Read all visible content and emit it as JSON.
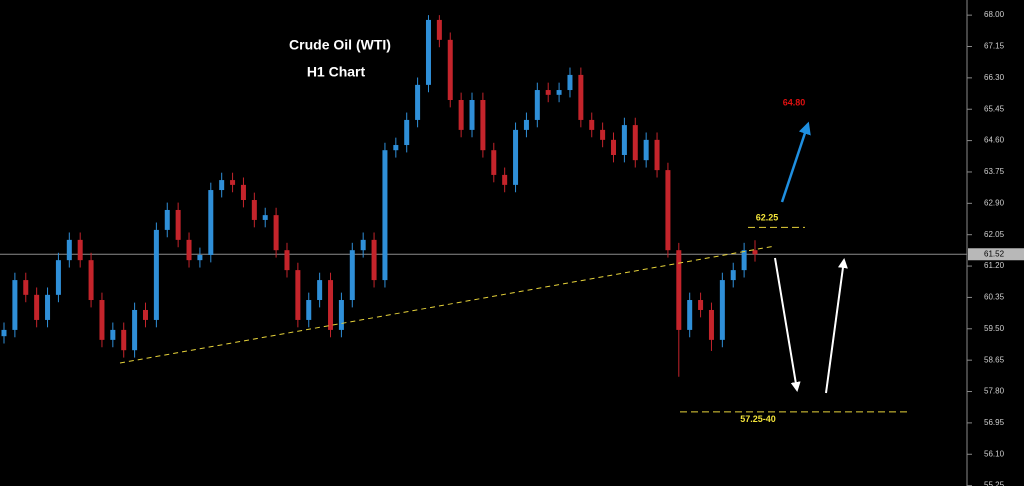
{
  "chart_data": {
    "type": "candlestick",
    "title": "Crude Oil (WTI)",
    "subtitle": "H1 Chart",
    "ylim": [
      55.24,
      68.41
    ],
    "yticks": [
      {
        "value": 68.0,
        "label": "68.00"
      },
      67.15,
      {
        "value": 66.3,
        "label": "66.30"
      },
      65.45,
      {
        "value": 64.6,
        "label": "64.60"
      },
      63.75,
      {
        "value": 62.9,
        "label": "62.90"
      },
      62.05,
      {
        "value": 61.2,
        "label": "61.20"
      },
      60.35,
      {
        "value": 59.5,
        "label": "59.50"
      },
      58.65,
      {
        "value": 57.8,
        "label": "57.80"
      },
      56.95,
      {
        "value": 56.1,
        "label": "56.10"
      },
      55.25
    ],
    "last_price": 61.52,
    "up_color": "#2f8fd8",
    "down_color": "#c4242b",
    "open": [
      59.3,
      59.47,
      60.82,
      60.42,
      59.74,
      60.42,
      61.36,
      61.91,
      61.36,
      60.28,
      59.2,
      59.47,
      58.92,
      60.01,
      59.74,
      62.18,
      62.72,
      61.91,
      61.36,
      61.5,
      63.26,
      63.53,
      63.4,
      62.99,
      62.45,
      62.58,
      61.63,
      61.09,
      59.74,
      60.28,
      60.82,
      59.47,
      60.28,
      61.63,
      61.91,
      60.82,
      64.34,
      64.48,
      65.16,
      66.11,
      67.87,
      67.33,
      65.7,
      64.89,
      65.7,
      64.34,
      63.67,
      63.4,
      64.89,
      65.16,
      65.97,
      65.84,
      65.97,
      66.38,
      65.16,
      64.89,
      64.62,
      64.21,
      65.02,
      64.07,
      64.62,
      63.8,
      61.63,
      59.47,
      60.28,
      60.01,
      59.2,
      60.82,
      61.09,
      61.63
    ],
    "high": [
      59.67,
      61.02,
      61.02,
      60.62,
      60.62,
      61.56,
      62.11,
      62.11,
      61.56,
      60.48,
      59.67,
      59.67,
      60.21,
      60.21,
      62.38,
      62.92,
      62.92,
      62.11,
      61.7,
      63.46,
      63.73,
      63.73,
      63.6,
      63.19,
      62.78,
      62.78,
      61.83,
      61.29,
      60.48,
      61.02,
      61.02,
      60.48,
      61.83,
      62.11,
      62.11,
      64.54,
      64.68,
      65.36,
      66.31,
      68.0,
      68.0,
      67.53,
      65.9,
      65.9,
      65.9,
      64.54,
      63.87,
      65.09,
      65.36,
      66.17,
      66.17,
      66.17,
      66.58,
      66.58,
      65.36,
      65.09,
      64.82,
      65.22,
      65.22,
      64.82,
      64.82,
      64.0,
      61.83,
      60.48,
      60.48,
      60.21,
      61.02,
      61.29,
      61.83,
      61.9
    ],
    "low": [
      59.1,
      59.27,
      60.22,
      59.54,
      59.54,
      60.22,
      61.16,
      61.16,
      60.08,
      59.0,
      59.0,
      58.72,
      58.72,
      59.54,
      59.54,
      61.98,
      61.71,
      61.16,
      61.16,
      61.3,
      63.06,
      63.2,
      62.79,
      62.25,
      62.25,
      61.43,
      60.89,
      59.54,
      59.54,
      60.08,
      59.27,
      59.27,
      60.08,
      61.43,
      60.62,
      60.62,
      64.14,
      64.28,
      64.96,
      65.91,
      67.13,
      65.5,
      64.69,
      64.69,
      64.14,
      63.47,
      63.2,
      63.2,
      64.69,
      64.96,
      65.64,
      65.64,
      65.77,
      64.96,
      64.69,
      64.42,
      64.01,
      64.01,
      63.87,
      63.87,
      63.6,
      61.43,
      58.2,
      59.27,
      59.81,
      58.9,
      59.0,
      60.62,
      60.89,
      61.32
    ],
    "close": [
      59.47,
      60.82,
      60.42,
      59.74,
      60.42,
      61.36,
      61.91,
      61.36,
      60.28,
      59.2,
      59.47,
      58.92,
      60.01,
      59.74,
      62.18,
      62.72,
      61.91,
      61.36,
      61.5,
      63.26,
      63.53,
      63.4,
      62.99,
      62.45,
      62.58,
      61.63,
      61.09,
      59.74,
      60.28,
      60.82,
      59.47,
      60.28,
      61.63,
      61.91,
      60.82,
      64.34,
      64.48,
      65.16,
      66.11,
      67.87,
      67.33,
      65.7,
      64.89,
      65.7,
      64.34,
      63.67,
      63.4,
      64.89,
      65.16,
      65.97,
      65.84,
      65.97,
      66.38,
      65.16,
      64.89,
      64.62,
      64.21,
      65.02,
      64.07,
      64.62,
      63.8,
      61.63,
      59.47,
      60.28,
      60.01,
      59.2,
      60.82,
      61.09,
      61.63,
      61.52
    ],
    "target": {
      "value": 64.8,
      "label": "64.80"
    },
    "levels": [
      {
        "value": 62.25,
        "label": "62.25"
      },
      {
        "value": 57.25,
        "label": "57.25-40"
      }
    ]
  }
}
